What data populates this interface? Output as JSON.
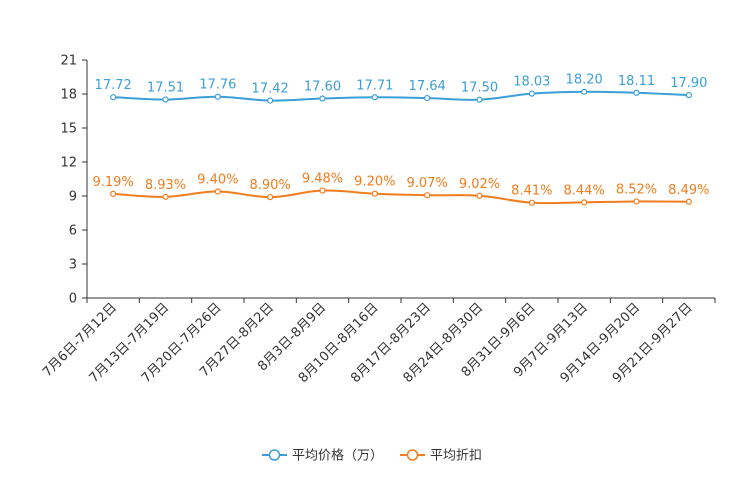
{
  "chart_data": {
    "type": "line",
    "categories": [
      "7月6日-7月12日",
      "7月13日-7月19日",
      "7月20日-7月26日",
      "7月27日-8月2日",
      "8月3日-8月9日",
      "8月10日-8月16日",
      "8月17日-8月23日",
      "8月24日-8月30日",
      "8月31日-9月6日",
      "9月7日-9月13日",
      "9月14日-9月20日",
      "9月21日-9月27日"
    ],
    "y_ticks": [
      "0",
      "3",
      "6",
      "9",
      "12",
      "15",
      "18",
      "21"
    ],
    "ylim": [
      0,
      21
    ],
    "series": [
      {
        "name": "平均价格（万）",
        "color": "#3a9fd6",
        "values": [
          17.72,
          17.51,
          17.76,
          17.42,
          17.6,
          17.71,
          17.64,
          17.5,
          18.03,
          18.2,
          18.11,
          17.9
        ],
        "labels": [
          "17.72",
          "17.51",
          "17.76",
          "17.42",
          "17.60",
          "17.71",
          "17.64",
          "17.50",
          "18.03",
          "18.20",
          "18.11",
          "17.90"
        ]
      },
      {
        "name": "平均折扣",
        "color": "#f07d1e",
        "values": [
          9.19,
          8.93,
          9.4,
          8.9,
          9.48,
          9.2,
          9.07,
          9.02,
          8.41,
          8.44,
          8.52,
          8.49
        ],
        "labels": [
          "9.19%",
          "8.93%",
          "9.40%",
          "8.90%",
          "9.48%",
          "9.20%",
          "9.07%",
          "9.02%",
          "8.41%",
          "8.44%",
          "8.52%",
          "8.49%"
        ]
      }
    ]
  }
}
